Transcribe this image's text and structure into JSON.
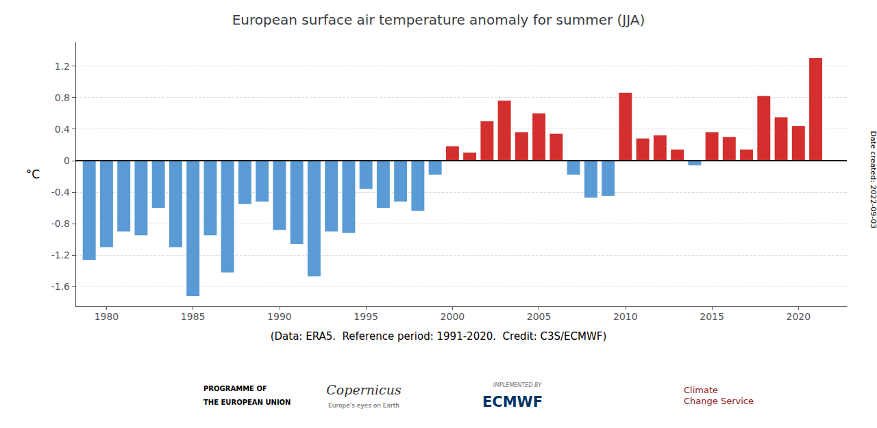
{
  "chart_data": {
    "type": "bar",
    "title": "European surface air temperature anomaly for summer (JJA)",
    "ylabel": "°C",
    "xlabel": "(Data: ERA5.  Reference period: 1991-2020.  Credit: C3S/ECMWF)",
    "annotations": [
      "Date created: 2022-09-03",
      "PROGRAMME OF",
      "THE EUROPEAN UNION",
      "Copernicus",
      "Europe's eyes on Earth",
      "IMPLEMENTED BY",
      "ECMWF",
      "Climate",
      "Change Service"
    ],
    "x": [
      1979,
      1980,
      1981,
      1982,
      1983,
      1984,
      1985,
      1986,
      1987,
      1988,
      1989,
      1990,
      1991,
      1992,
      1993,
      1994,
      1995,
      1996,
      1997,
      1998,
      1999,
      2000,
      2001,
      2002,
      2003,
      2004,
      2005,
      2006,
      2007,
      2008,
      2009,
      2010,
      2011,
      2012,
      2013,
      2014,
      2015,
      2016,
      2017,
      2018,
      2019,
      2020,
      2021
    ],
    "values": [
      -1.26,
      -1.1,
      -0.9,
      -0.95,
      -0.6,
      -1.1,
      -1.72,
      -0.95,
      -1.42,
      -0.55,
      -0.52,
      -0.88,
      -1.06,
      -1.47,
      -0.9,
      -0.92,
      -0.36,
      -0.6,
      -0.52,
      -0.64,
      -0.18,
      0.18,
      0.1,
      0.5,
      0.76,
      0.36,
      0.6,
      0.34,
      -0.18,
      -0.47,
      -0.45,
      0.86,
      0.28,
      0.32,
      0.14,
      -0.06,
      0.36,
      0.3,
      0.14,
      0.82,
      0.55,
      0.44,
      1.3
    ],
    "colors": [
      "#5b9bd5",
      "#5b9bd5",
      "#5b9bd5",
      "#5b9bd5",
      "#5b9bd5",
      "#5b9bd5",
      "#5b9bd5",
      "#5b9bd5",
      "#5b9bd5",
      "#5b9bd5",
      "#5b9bd5",
      "#5b9bd5",
      "#5b9bd5",
      "#5b9bd5",
      "#5b9bd5",
      "#5b9bd5",
      "#5b9bd5",
      "#5b9bd5",
      "#5b9bd5",
      "#5b9bd5",
      "#5b9bd5",
      "#d32f2f",
      "#d32f2f",
      "#d32f2f",
      "#d32f2f",
      "#d32f2f",
      "#d32f2f",
      "#d32f2f",
      "#5b9bd5",
      "#5b9bd5",
      "#5b9bd5",
      "#d32f2f",
      "#d32f2f",
      "#d32f2f",
      "#d32f2f",
      "#5b9bd5",
      "#d32f2f",
      "#d32f2f",
      "#d32f2f",
      "#d32f2f",
      "#d32f2f",
      "#d32f2f",
      "#d32f2f"
    ],
    "xlim": [
      1978.2,
      2022.8
    ],
    "xticks": [
      1980,
      1985,
      1990,
      1995,
      2000,
      2005,
      2010,
      2015,
      2020
    ],
    "ylim": [
      -1.85,
      1.5
    ],
    "yticks": [
      -1.6,
      -1.2,
      -0.8,
      -0.4,
      0.0,
      0.4,
      0.8,
      1.2
    ],
    "grid": true
  }
}
